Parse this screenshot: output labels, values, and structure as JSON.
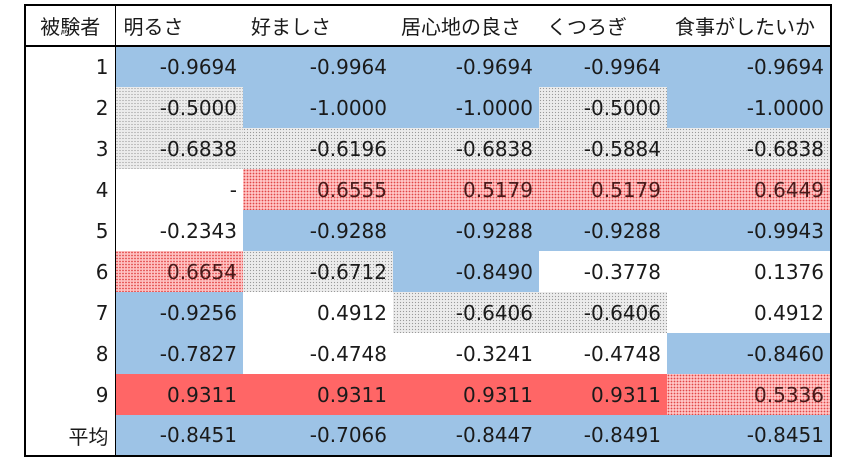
{
  "table": {
    "headers": [
      "被験者",
      "明るさ",
      "好ましさ",
      "居心地の良さ",
      "くつろぎ",
      "食事がしたいか"
    ],
    "rows": [
      {
        "id": "1",
        "values": [
          "-0.9694",
          "-0.9964",
          "-0.9694",
          "-0.9964",
          "-0.9694"
        ]
      },
      {
        "id": "2",
        "values": [
          "-0.5000",
          "-1.0000",
          "-1.0000",
          "-0.5000",
          "-1.0000"
        ]
      },
      {
        "id": "3",
        "values": [
          "-0.6838",
          "-0.6196",
          "-0.6838",
          "-0.5884",
          "-0.6838"
        ]
      },
      {
        "id": "4",
        "values": [
          "-",
          "0.6555",
          "0.5179",
          "0.5179",
          "0.6449"
        ]
      },
      {
        "id": "5",
        "values": [
          "-0.2343",
          "-0.9288",
          "-0.9288",
          "-0.9288",
          "-0.9943"
        ]
      },
      {
        "id": "6",
        "values": [
          "0.6654",
          "-0.6712",
          "-0.8490",
          "-0.3778",
          "0.1376"
        ]
      },
      {
        "id": "7",
        "values": [
          "-0.9256",
          "0.4912",
          "-0.6406",
          "-0.6406",
          "0.4912"
        ]
      },
      {
        "id": "8",
        "values": [
          "-0.7827",
          "-0.4748",
          "-0.3241",
          "-0.4748",
          "-0.8460"
        ]
      },
      {
        "id": "9",
        "values": [
          "0.9311",
          "0.9311",
          "0.9311",
          "0.9311",
          "0.5336"
        ]
      }
    ],
    "average": {
      "id": "平均",
      "values": [
        "-0.8451",
        "-0.7066",
        "-0.8447",
        "-0.8491",
        "-0.8451"
      ]
    },
    "fill_key": {
      "bl": "#9dc3e6 (solid light blue)",
      "dot": "gray dotted",
      "rdot": "red dotted",
      "rd": "#ff6666 (solid red)",
      "wh": "#ffffff (white)"
    },
    "fills": [
      [
        "bl",
        "bl",
        "bl",
        "bl",
        "bl"
      ],
      [
        "dot",
        "bl",
        "bl",
        "dot",
        "bl"
      ],
      [
        "dot",
        "dot",
        "dot",
        "dot",
        "dot"
      ],
      [
        "wh",
        "rdot",
        "rdot",
        "rdot",
        "rdot"
      ],
      [
        "wh",
        "bl",
        "bl",
        "bl",
        "bl"
      ],
      [
        "rdot",
        "dot",
        "bl",
        "wh",
        "wh"
      ],
      [
        "bl",
        "wh",
        "dot",
        "dot",
        "wh"
      ],
      [
        "bl",
        "wh",
        "wh",
        "wh",
        "bl"
      ],
      [
        "rd",
        "rd",
        "rd",
        "rd",
        "rdot"
      ]
    ],
    "average_fills": [
      "bl",
      "bl",
      "bl",
      "bl",
      "bl"
    ]
  }
}
